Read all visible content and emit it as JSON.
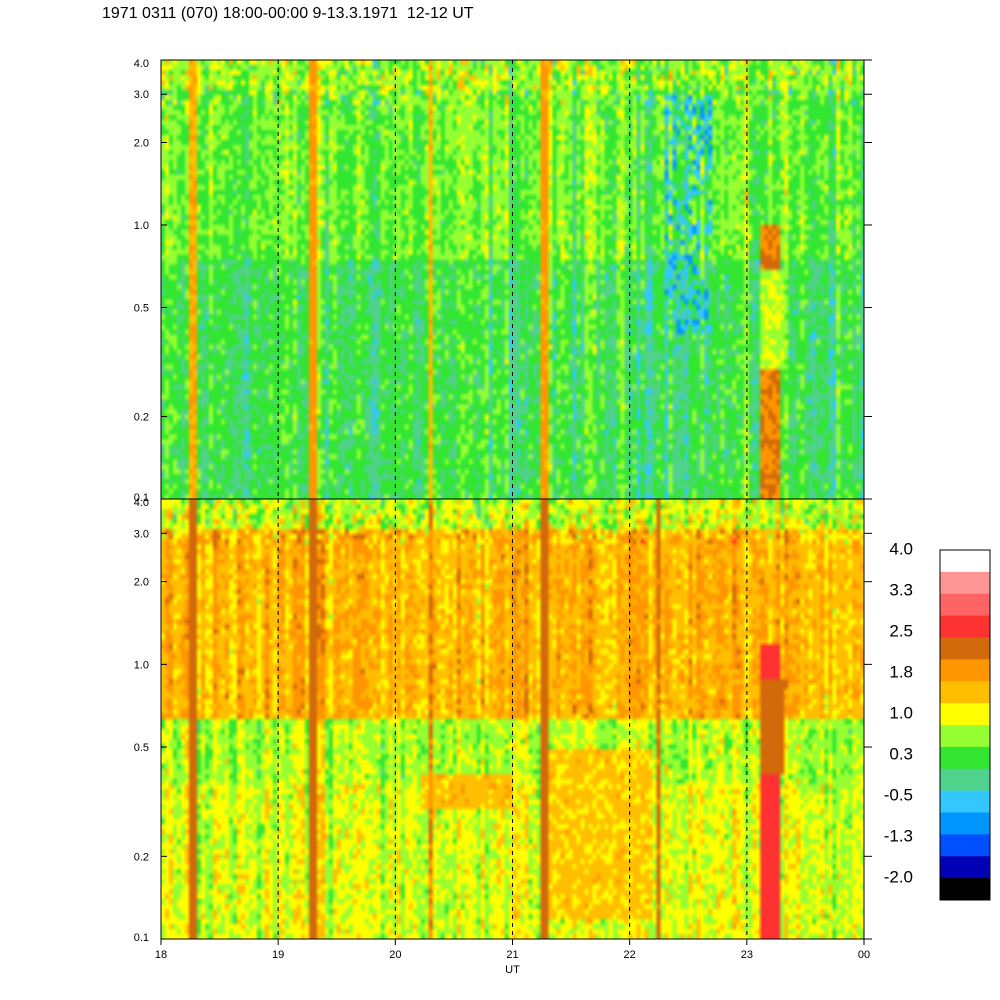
{
  "title": "1971 0311 (070) 18:00-00:00 9-13.3.1971  12-12 UT",
  "chart_data": {
    "type": "heatmap",
    "panels": [
      {
        "name": "upper",
        "y_scale": "log",
        "ylim": [
          0.1,
          4.0
        ],
        "y_ticks": [
          "0.1",
          "0.2",
          "0.5",
          "1.0",
          "2.0",
          "3.0",
          "4.0"
        ],
        "base_level": 0.3,
        "upper_level": 0.6,
        "top_noise_level": 0.8,
        "events": [
          {
            "t": 18.28,
            "level": 1.8
          },
          {
            "t": 19.3,
            "level": 1.9
          },
          {
            "t": 20.3,
            "level": 1.7
          },
          {
            "t": 21.28,
            "level": 1.9
          },
          {
            "t": 23.2,
            "level": 2.2,
            "from_y": 0.1,
            "to_y": 1.0
          },
          {
            "t": 23.22,
            "level": 1.0,
            "from_y": 0.3,
            "to_y": 0.7
          }
        ],
        "dips": [
          {
            "t_from": 22.3,
            "t_to": 22.7,
            "level": -0.5,
            "from_y": 0.4,
            "to_y": 3.0
          }
        ]
      },
      {
        "name": "lower",
        "y_scale": "log",
        "ylim": [
          0.1,
          4.0
        ],
        "y_ticks": [
          "0.1",
          "0.2",
          "0.5",
          "1.0",
          "2.0",
          "3.0",
          "4.0"
        ],
        "base_level": 1.1,
        "mid_level": 0.9,
        "upper_level": 1.7,
        "top_noise_level": 1.0,
        "events": [
          {
            "t": 18.28,
            "level": 2.4
          },
          {
            "t": 19.3,
            "level": 2.4
          },
          {
            "t": 20.3,
            "level": 2.2
          },
          {
            "t": 21.28,
            "level": 2.4
          },
          {
            "t": 22.25,
            "level": 2.3
          },
          {
            "t": 23.2,
            "level": 2.8,
            "from_y": 0.1,
            "to_y": 1.2
          },
          {
            "t": 23.22,
            "level": 2.4,
            "from_y": 0.4,
            "to_y": 0.9
          }
        ],
        "bands": [
          {
            "t_from": 20.2,
            "t_to": 21.0,
            "level": 1.6,
            "from_y": 0.3,
            "to_y": 0.4
          },
          {
            "t_from": 21.3,
            "t_to": 22.2,
            "level": 1.5,
            "from_y": 0.12,
            "to_y": 0.5
          }
        ]
      }
    ],
    "x_range": [
      18,
      24
    ],
    "x_ticks": [
      "18",
      "19",
      "20",
      "21",
      "22",
      "23",
      "00"
    ],
    "xlabel": "UT",
    "hour_markers": [
      19,
      20,
      21,
      22,
      23
    ],
    "colorbar": {
      "labels": [
        "4.0",
        "3.3",
        "2.5",
        "1.8",
        "1.0",
        "0.3",
        "-0.5",
        "-1.3",
        "-2.0"
      ],
      "colors": [
        "#ffffff",
        "#ff9696",
        "#ff6464",
        "#ff3232",
        "#d2690a",
        "#ff9600",
        "#ffbe00",
        "#ffff00",
        "#96ff32",
        "#32e632",
        "#50d28c",
        "#32c8ff",
        "#0096ff",
        "#0050ff",
        "#0000b4",
        "#000000"
      ]
    }
  }
}
